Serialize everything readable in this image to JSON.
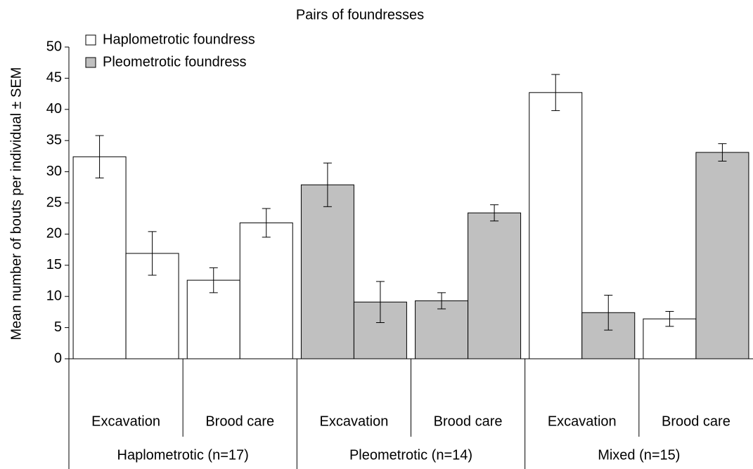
{
  "chart_data": {
    "type": "bar",
    "title": "Pairs of foundresses",
    "y_label": "Mean number of bouts per individual ± SEM",
    "ylim": [
      0,
      50
    ],
    "yticks": [
      0,
      5,
      10,
      15,
      20,
      25,
      30,
      35,
      40,
      45,
      50
    ],
    "legend": [
      {
        "name": "Haplometrotic foundress",
        "color": "#ffffff"
      },
      {
        "name": "Pleometrotic foundress",
        "color": "#c0c0c0"
      }
    ],
    "groups": [
      {
        "label": "Haplometrotic (n=17)",
        "subgroups": [
          {
            "label": "Excavation",
            "values": [
              32.4,
              16.9
            ],
            "errors": [
              3.4,
              3.5
            ],
            "colors": [
              "#ffffff",
              "#ffffff"
            ]
          },
          {
            "label": "Brood care",
            "values": [
              12.6,
              21.8
            ],
            "errors": [
              2.0,
              2.3
            ],
            "colors": [
              "#ffffff",
              "#ffffff"
            ]
          }
        ]
      },
      {
        "label": "Pleometrotic (n=14)",
        "subgroups": [
          {
            "label": "Excavation",
            "values": [
              27.9,
              9.1
            ],
            "errors": [
              3.5,
              3.3
            ],
            "colors": [
              "#c0c0c0",
              "#c0c0c0"
            ]
          },
          {
            "label": "Brood care",
            "values": [
              9.3,
              23.4
            ],
            "errors": [
              1.3,
              1.3
            ],
            "colors": [
              "#c0c0c0",
              "#c0c0c0"
            ]
          }
        ]
      },
      {
        "label": "Mixed (n=15)",
        "subgroups": [
          {
            "label": "Excavation",
            "values": [
              42.7,
              7.4
            ],
            "errors": [
              2.9,
              2.8
            ],
            "colors": [
              "#ffffff",
              "#c0c0c0"
            ]
          },
          {
            "label": "Brood care",
            "values": [
              6.4,
              33.1
            ],
            "errors": [
              1.2,
              1.4
            ],
            "colors": [
              "#ffffff",
              "#c0c0c0"
            ]
          }
        ]
      }
    ]
  }
}
